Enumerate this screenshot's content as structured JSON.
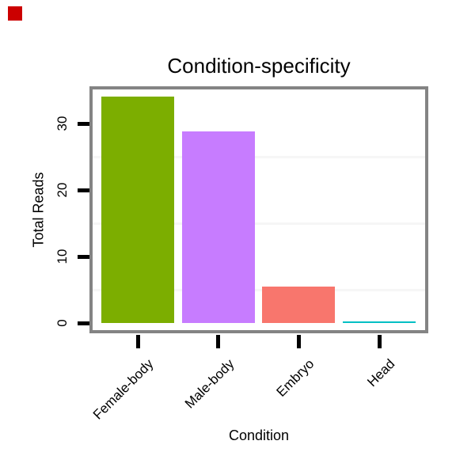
{
  "marker": {
    "color": "#CC0000"
  },
  "chart_data": {
    "type": "bar",
    "title": "Condition-specificity",
    "xlabel": "Condition",
    "ylabel": "Total Reads",
    "categories": [
      "Female-body",
      "Male-body",
      "Embryo",
      "Head"
    ],
    "values": [
      34.0,
      28.8,
      5.5,
      0.2
    ],
    "bar_colors": [
      "#7CAE00",
      "#C77CFF",
      "#F8766D",
      "#00BFC4"
    ],
    "yticks": [
      0,
      10,
      20,
      30
    ],
    "minor_gridlines": [
      5,
      15,
      25
    ],
    "ylim": [
      0,
      35.1
    ],
    "x_label_rotation_deg": 45,
    "legend": "none",
    "colors": {
      "panel_border": "#848484",
      "tick": "#000000",
      "gridline": "#F6F6F6",
      "text": "#000000",
      "background": "#FFFFFF"
    }
  }
}
